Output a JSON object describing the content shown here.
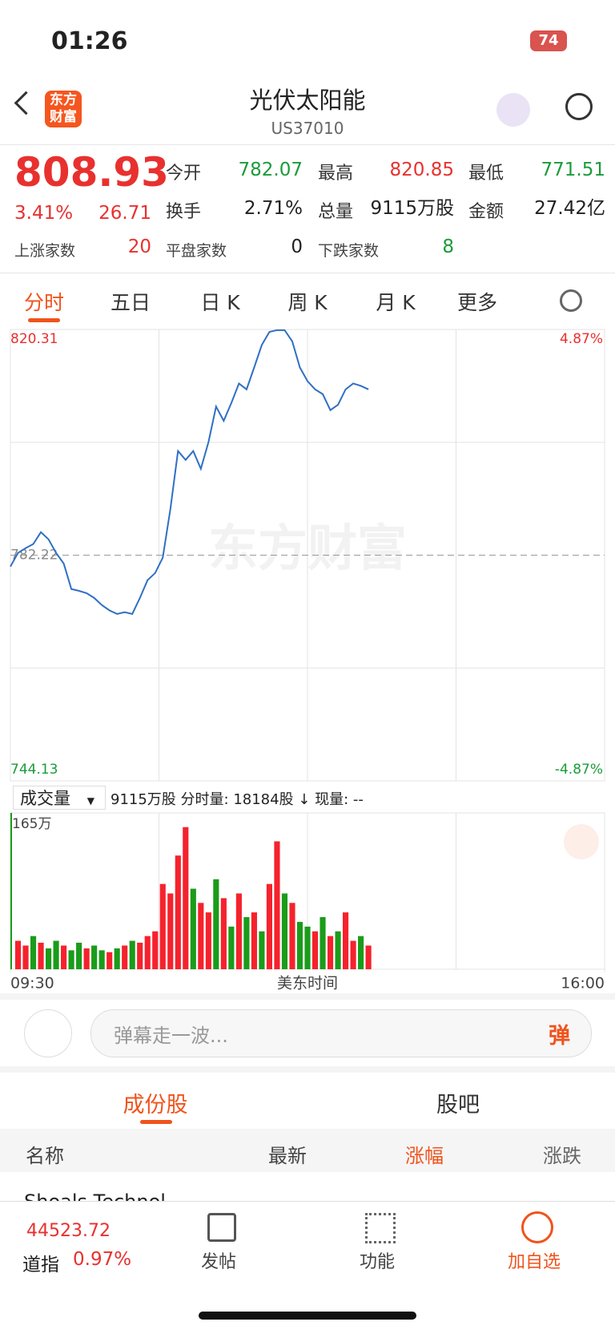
{
  "status_bar": {
    "time": "01:26",
    "battery": "74"
  },
  "header": {
    "logo": "东方财富",
    "title": "光伏太阳能",
    "code": "US37010"
  },
  "quote": {
    "price": "808.93",
    "change_pct": "3.41%",
    "change": "26.71",
    "stats": [
      {
        "label": "今开",
        "value": "782.07"
      },
      {
        "label": "最高",
        "value": "820.85"
      },
      {
        "label": "最低",
        "value": "771.51"
      },
      {
        "label": "换手",
        "value": "2.71%"
      },
      {
        "label": "总量",
        "value": "9115万股"
      },
      {
        "label": "金额",
        "value": "27.42亿"
      }
    ],
    "counts": [
      {
        "label": "上涨家数",
        "value": "20"
      },
      {
        "label": "平盘家数",
        "value": "0"
      },
      {
        "label": "下跌家数",
        "value": "8"
      }
    ]
  },
  "tabs": [
    "分时",
    "五日",
    "日 K",
    "周 K",
    "月 K",
    "更多"
  ],
  "volume_bar": {
    "selector": "成交量",
    "info": "9115万股 分时量: 18184股 ↓ 现量: --"
  },
  "chart_data": [
    {
      "type": "line",
      "watermark": "东方财富",
      "color": "#2f6fc4",
      "x": [
        0,
        5,
        10,
        15,
        20,
        25,
        30,
        35,
        40,
        45,
        50,
        55,
        60,
        65,
        70,
        75,
        80,
        85,
        90,
        95,
        100,
        105,
        110,
        115,
        120,
        125,
        130,
        135,
        140,
        145,
        150,
        155,
        160,
        165,
        170,
        175,
        180,
        185,
        190,
        195,
        200,
        205,
        210,
        215,
        220,
        225,
        230,
        235
      ],
      "values": [
        780.3,
        782.6,
        783.4,
        784.1,
        786.1,
        784.9,
        782.6,
        780.8,
        776.5,
        776.2,
        775.8,
        775.0,
        773.8,
        772.9,
        772.3,
        772.6,
        772.3,
        775.0,
        778.0,
        779.2,
        781.8,
        790.0,
        799.8,
        798.3,
        799.8,
        796.8,
        801.3,
        807.3,
        804.9,
        807.9,
        811.2,
        810.2,
        813.9,
        817.7,
        819.9,
        820.2,
        820.2,
        818.3,
        813.9,
        811.6,
        810.2,
        809.4,
        806.7,
        807.6,
        810.2,
        811.2,
        810.8,
        810.2
      ],
      "xlim": [
        0,
        390
      ],
      "xticks": [
        {
          "value": 0,
          "label": "09:30"
        },
        {
          "value": 390,
          "label": "16:00"
        }
      ],
      "x_label": "美东时间",
      "ylim": [
        744.13,
        820.31
      ],
      "yticks": [
        {
          "value": 744.13,
          "label": "744.13"
        },
        {
          "value": 782.22,
          "label": "782.22"
        },
        {
          "value": 820.31,
          "label": "820.31"
        }
      ],
      "y2lim": [
        -4.87,
        4.87
      ],
      "y2ticks": [
        {
          "value": -4.87,
          "label": "-4.87%"
        },
        {
          "value": 4.87,
          "label": "4.87%"
        }
      ]
    },
    {
      "type": "bar",
      "x": [
        0,
        5,
        10,
        15,
        20,
        25,
        30,
        35,
        40,
        45,
        50,
        55,
        60,
        65,
        70,
        75,
        80,
        85,
        90,
        95,
        100,
        105,
        110,
        115,
        120,
        125,
        130,
        135,
        140,
        145,
        150,
        155,
        160,
        165,
        170,
        175,
        180,
        185,
        190,
        195,
        200,
        205,
        210,
        215,
        220,
        225,
        230,
        235
      ],
      "values": [
        165,
        30,
        25,
        35,
        28,
        22,
        30,
        25,
        20,
        28,
        22,
        25,
        20,
        18,
        22,
        25,
        30,
        28,
        35,
        40,
        90,
        80,
        120,
        150,
        85,
        70,
        60,
        95,
        75,
        45,
        80,
        55,
        60,
        40,
        90,
        135,
        80,
        70,
        50,
        45,
        40,
        55,
        35,
        40,
        60,
        30,
        35,
        25
      ],
      "colors": [
        "#1a9c1a",
        "#f5222d",
        "#f5222d",
        "#1a9c1a",
        "#f5222d",
        "#1a9c1a",
        "#1a9c1a",
        "#f5222d",
        "#1a9c1a",
        "#1a9c1a",
        "#f5222d",
        "#1a9c1a",
        "#1a9c1a",
        "#f5222d",
        "#1a9c1a",
        "#f5222d",
        "#1a9c1a",
        "#f5222d",
        "#f5222d",
        "#f5222d",
        "#f5222d",
        "#f5222d",
        "#f5222d",
        "#f5222d",
        "#1a9c1a",
        "#f5222d",
        "#f5222d",
        "#1a9c1a",
        "#f5222d",
        "#1a9c1a",
        "#f5222d",
        "#1a9c1a",
        "#f5222d",
        "#1a9c1a",
        "#f5222d",
        "#f5222d",
        "#1a9c1a",
        "#f5222d",
        "#1a9c1a",
        "#1a9c1a",
        "#f5222d",
        "#1a9c1a",
        "#f5222d",
        "#1a9c1a",
        "#f5222d",
        "#f5222d",
        "#1a9c1a",
        "#f5222d"
      ],
      "xlim": [
        0,
        390
      ],
      "ylim": [
        0,
        165
      ],
      "yticks": [
        {
          "value": 165,
          "label": "165万"
        }
      ]
    }
  ],
  "comment_bar": {
    "placeholder": "弹幕走一波...",
    "button": "弹"
  },
  "section_tabs": [
    "成份股",
    "股吧"
  ],
  "table": {
    "columns": [
      "名称",
      "最新",
      "涨幅",
      "涨跌"
    ],
    "partial_row": "Shoals Technol"
  },
  "bottom_nav": {
    "index_value": "44523.72",
    "index_name": "道指",
    "index_change": "0.97%",
    "items": [
      "发帖",
      "功能",
      "加自选"
    ]
  }
}
